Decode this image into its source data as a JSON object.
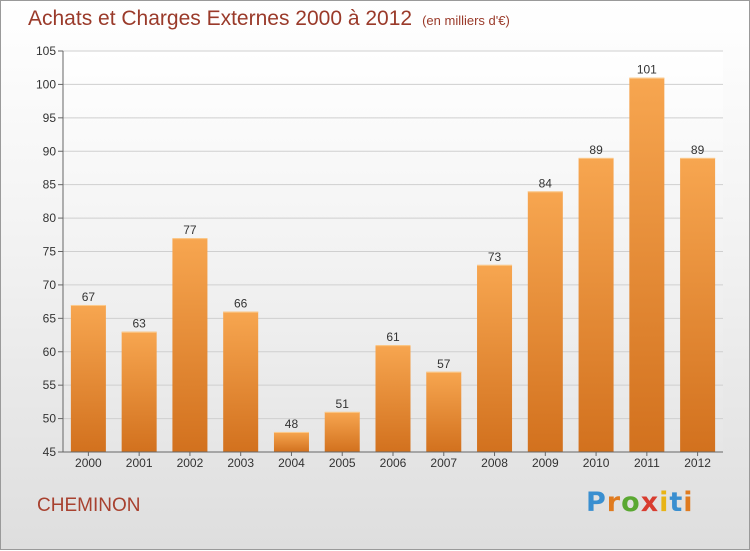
{
  "header": {
    "title": "Achats et Charges Externes 2000 à 2012",
    "unit": "(en milliers d'€)"
  },
  "footer": {
    "commune": "CHEMINON",
    "logo_text": "Proxiti"
  },
  "colors": {
    "bar_top": "#f7a650",
    "bar_bottom": "#d2711e",
    "title": "#9a3a2a",
    "commune": "#a8412f"
  },
  "chart_data": {
    "type": "bar",
    "title": "Achats et Charges Externes 2000 à 2012",
    "subtitle": "(en milliers d'€)",
    "categories": [
      "2000",
      "2001",
      "2002",
      "2003",
      "2004",
      "2005",
      "2006",
      "2007",
      "2008",
      "2009",
      "2010",
      "2011",
      "2012"
    ],
    "values": [
      67,
      63,
      77,
      66,
      48,
      51,
      61,
      57,
      73,
      84,
      89,
      101,
      89
    ],
    "ylim": [
      45,
      105
    ],
    "yticks": [
      45,
      50,
      55,
      60,
      65,
      70,
      75,
      80,
      85,
      90,
      95,
      100,
      105
    ],
    "grid": true,
    "legend": "none"
  }
}
